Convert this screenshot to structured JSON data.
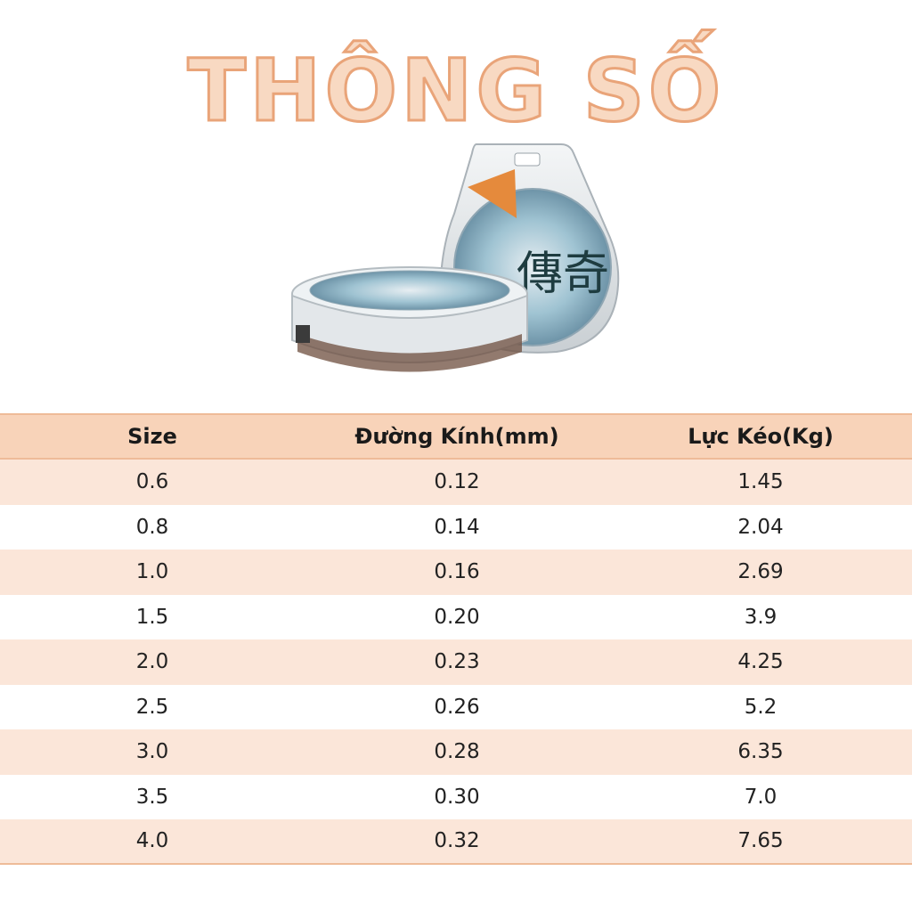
{
  "title": "THÔNG SỐ",
  "table": {
    "headers": [
      "Size",
      "Đường Kính(mm)",
      "Lực Kéo(Kg)"
    ],
    "rows": [
      [
        "0.6",
        "0.12",
        "1.45"
      ],
      [
        "0.8",
        "0.14",
        "2.04"
      ],
      [
        "1.0",
        "0.16",
        "2.69"
      ],
      [
        "1.5",
        "0.20",
        "3.9"
      ],
      [
        "2.0",
        "0.23",
        "4.25"
      ],
      [
        "2.5",
        "0.26",
        "5.2"
      ],
      [
        "3.0",
        "0.28",
        "6.35"
      ],
      [
        "3.5",
        "0.30",
        "7.0"
      ],
      [
        "4.0",
        "0.32",
        "7.65"
      ]
    ]
  },
  "colors": {
    "header_bg": "#f8d3b9",
    "row_shade": "#fbe6d9",
    "title_fill": "#f8d9c2",
    "title_stroke": "#e9a479"
  }
}
